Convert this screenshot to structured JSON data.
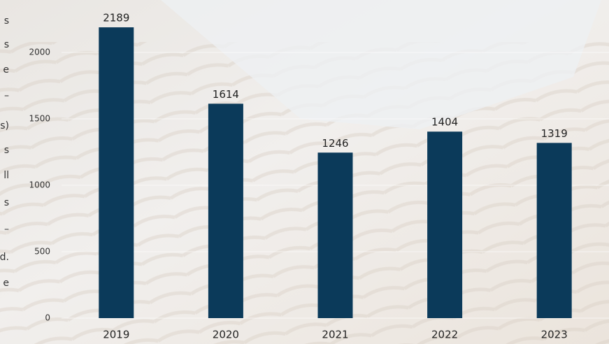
{
  "side_text": [
    "s",
    "s",
    "e",
    "–",
    "s)",
    "s",
    "ll",
    "s",
    "–",
    "d.",
    "e"
  ],
  "chart_data": {
    "type": "bar",
    "categories": [
      "2019",
      "2020",
      "2021",
      "2022",
      "2023"
    ],
    "values": [
      2189,
      1614,
      1246,
      1404,
      1319
    ],
    "color": "#0b3a5a",
    "ylim": [
      0,
      2000
    ],
    "yticks": [
      0,
      500,
      1000,
      1500,
      2000
    ],
    "grid": true
  }
}
